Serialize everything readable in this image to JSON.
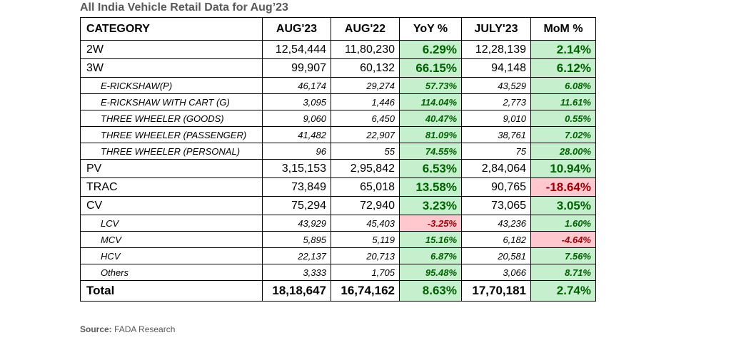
{
  "title": "All India Vehicle Retail Data for Aug’23",
  "source_label": "Source:",
  "source_text": " FADA Research",
  "headers": [
    "CATEGORY",
    "AUG'23",
    "AUG'22",
    "YoY %",
    "JULY'23",
    "MoM %"
  ],
  "rows": [
    {
      "type": "main",
      "category": "2W",
      "aug23": "12,54,444",
      "aug22": "11,80,230",
      "yoy": "6.29%",
      "yoy_sign": "pos",
      "jul23": "12,28,139",
      "mom": "2.14%",
      "mom_sign": "pos"
    },
    {
      "type": "main",
      "category": "3W",
      "aug23": "99,907",
      "aug22": "60,132",
      "yoy": "66.15%",
      "yoy_sign": "pos",
      "jul23": "94,148",
      "mom": "6.12%",
      "mom_sign": "pos"
    },
    {
      "type": "sub",
      "category": "E-RICKSHAW(P)",
      "aug23": "46,174",
      "aug22": "29,274",
      "yoy": "57.73%",
      "yoy_sign": "pos",
      "jul23": "43,529",
      "mom": "6.08%",
      "mom_sign": "pos"
    },
    {
      "type": "sub",
      "category": "E-RICKSHAW WITH CART (G)",
      "aug23": "3,095",
      "aug22": "1,446",
      "yoy": "114.04%",
      "yoy_sign": "pos",
      "jul23": "2,773",
      "mom": "11.61%",
      "mom_sign": "pos"
    },
    {
      "type": "sub",
      "category": "THREE WHEELER (GOODS)",
      "aug23": "9,060",
      "aug22": "6,450",
      "yoy": "40.47%",
      "yoy_sign": "pos",
      "jul23": "9,010",
      "mom": "0.55%",
      "mom_sign": "pos"
    },
    {
      "type": "sub",
      "category": "THREE WHEELER (PASSENGER)",
      "aug23": "41,482",
      "aug22": "22,907",
      "yoy": "81.09%",
      "yoy_sign": "pos",
      "jul23": "38,761",
      "mom": "7.02%",
      "mom_sign": "pos"
    },
    {
      "type": "sub",
      "category": "THREE WHEELER (PERSONAL)",
      "aug23": "96",
      "aug22": "55",
      "yoy": "74.55%",
      "yoy_sign": "pos",
      "jul23": "75",
      "mom": "28.00%",
      "mom_sign": "pos"
    },
    {
      "type": "main",
      "category": "PV",
      "aug23": "3,15,153",
      "aug22": "2,95,842",
      "yoy": "6.53%",
      "yoy_sign": "pos",
      "jul23": "2,84,064",
      "mom": "10.94%",
      "mom_sign": "pos"
    },
    {
      "type": "main",
      "category": "TRAC",
      "aug23": "73,849",
      "aug22": "65,018",
      "yoy": "13.58%",
      "yoy_sign": "pos",
      "jul23": "90,765",
      "mom": "-18.64%",
      "mom_sign": "neg"
    },
    {
      "type": "main",
      "category": "CV",
      "aug23": "75,294",
      "aug22": "72,940",
      "yoy": "3.23%",
      "yoy_sign": "pos",
      "jul23": "73,065",
      "mom": "3.05%",
      "mom_sign": "pos"
    },
    {
      "type": "sub",
      "category": "LCV",
      "aug23": "43,929",
      "aug22": "45,403",
      "yoy": "-3.25%",
      "yoy_sign": "neg",
      "jul23": "43,236",
      "mom": "1.60%",
      "mom_sign": "pos"
    },
    {
      "type": "sub",
      "category": "MCV",
      "aug23": "5,895",
      "aug22": "5,119",
      "yoy": "15.16%",
      "yoy_sign": "pos",
      "jul23": "6,182",
      "mom": "-4.64%",
      "mom_sign": "neg"
    },
    {
      "type": "sub",
      "category": "HCV",
      "aug23": "22,137",
      "aug22": "20,713",
      "yoy": "6.87%",
      "yoy_sign": "pos",
      "jul23": "20,581",
      "mom": "7.56%",
      "mom_sign": "pos"
    },
    {
      "type": "sub",
      "category": "Others",
      "aug23": "3,333",
      "aug22": "1,705",
      "yoy": "95.48%",
      "yoy_sign": "pos",
      "jul23": "3,066",
      "mom": "8.71%",
      "mom_sign": "pos"
    },
    {
      "type": "total",
      "category": "Total",
      "aug23": "18,18,647",
      "aug22": "16,74,162",
      "yoy": "8.63%",
      "yoy_sign": "pos",
      "jul23": "17,70,181",
      "mom": "2.74%",
      "mom_sign": "pos"
    }
  ],
  "colors": {
    "positive_bg": "#c6efce",
    "positive_text": "#006100",
    "negative_bg": "#ffc7ce",
    "negative_text": "#9c0006"
  }
}
